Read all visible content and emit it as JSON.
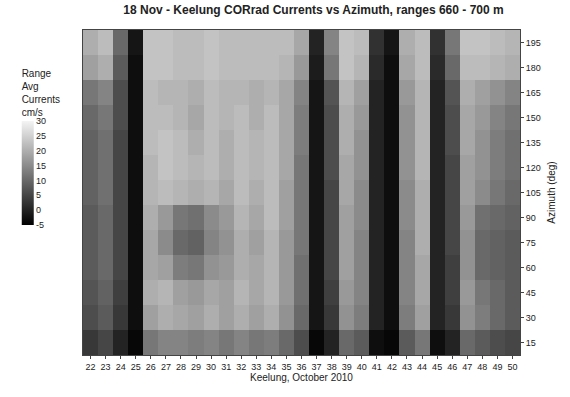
{
  "chart_data": {
    "type": "heatmap",
    "title": "18 Nov - Keelung CORrad Currents vs Azimuth, ranges 660 - 700 m",
    "x_label": "Keelung, October 2010",
    "y_label": "Azimuth (deg)",
    "colorbar_title": [
      "Range",
      "Avg",
      "Currents",
      "cm/s"
    ],
    "x": [
      22,
      23,
      24,
      25,
      26,
      27,
      28,
      29,
      30,
      31,
      32,
      33,
      34,
      35,
      36,
      37,
      38,
      39,
      40,
      41,
      42,
      43,
      44,
      45,
      46,
      47,
      48,
      49,
      50
    ],
    "y": [
      15,
      30,
      45,
      60,
      75,
      90,
      105,
      120,
      135,
      150,
      165,
      180,
      195
    ],
    "z": [
      [
        3,
        5,
        0,
        -4,
        12,
        14,
        14,
        13,
        14,
        12,
        14,
        12,
        13,
        10,
        6,
        -4,
        0,
        10,
        8,
        -3,
        -4,
        8,
        12,
        -3,
        0,
        10,
        8,
        6,
        5
      ],
      [
        6,
        8,
        3,
        -3,
        18,
        20,
        19,
        18,
        20,
        18,
        20,
        18,
        20,
        16,
        10,
        -2,
        3,
        16,
        13,
        0,
        -3,
        13,
        18,
        0,
        3,
        16,
        13,
        10,
        8
      ],
      [
        7,
        9,
        4,
        -3,
        20,
        21,
        18,
        17,
        19,
        18,
        21,
        19,
        21,
        17,
        11,
        -2,
        4,
        17,
        14,
        0,
        -3,
        14,
        19,
        0,
        4,
        17,
        12,
        10,
        8
      ],
      [
        8,
        10,
        5,
        -3,
        19,
        18,
        13,
        12,
        16,
        17,
        20,
        19,
        21,
        17,
        11,
        -2,
        5,
        18,
        14,
        0,
        -3,
        14,
        19,
        0,
        4,
        16,
        10,
        9,
        8
      ],
      [
        8,
        10,
        5,
        -3,
        19,
        15,
        10,
        9,
        14,
        16,
        20,
        18,
        21,
        17,
        12,
        -2,
        5,
        18,
        14,
        0,
        -3,
        14,
        20,
        0,
        5,
        16,
        10,
        9,
        8
      ],
      [
        8,
        10,
        5,
        -3,
        20,
        17,
        12,
        11,
        15,
        17,
        21,
        19,
        22,
        18,
        12,
        -2,
        5,
        18,
        15,
        0,
        -3,
        15,
        20,
        0,
        5,
        17,
        11,
        10,
        9
      ],
      [
        9,
        11,
        5,
        -3,
        21,
        22,
        21,
        20,
        21,
        19,
        22,
        20,
        22,
        18,
        12,
        -2,
        5,
        19,
        15,
        0,
        -3,
        15,
        20,
        0,
        5,
        18,
        15,
        12,
        10
      ],
      [
        9,
        11,
        5,
        -3,
        21,
        23,
        22,
        21,
        22,
        20,
        22,
        21,
        22,
        19,
        12,
        -2,
        6,
        19,
        16,
        0,
        -3,
        16,
        21,
        0,
        5,
        18,
        16,
        13,
        11
      ],
      [
        9,
        11,
        5,
        -3,
        22,
        23,
        22,
        20,
        22,
        20,
        22,
        21,
        22,
        19,
        13,
        -2,
        6,
        20,
        16,
        0,
        -3,
        16,
        21,
        0,
        6,
        19,
        16,
        13,
        11
      ],
      [
        10,
        12,
        6,
        -3,
        22,
        22,
        21,
        19,
        22,
        21,
        22,
        20,
        22,
        19,
        13,
        -2,
        6,
        20,
        17,
        0,
        -3,
        16,
        21,
        0,
        6,
        19,
        17,
        14,
        12
      ],
      [
        12,
        14,
        6,
        -3,
        22,
        21,
        21,
        20,
        22,
        21,
        21,
        20,
        21,
        19,
        14,
        -2,
        7,
        21,
        18,
        0,
        -3,
        17,
        21,
        0,
        7,
        20,
        18,
        16,
        14
      ],
      [
        18,
        20,
        8,
        -3,
        23,
        23,
        22,
        22,
        23,
        22,
        22,
        22,
        22,
        21,
        17,
        -1,
        12,
        23,
        21,
        1,
        -3,
        19,
        22,
        1,
        10,
        22,
        22,
        21,
        20
      ],
      [
        20,
        22,
        10,
        -2,
        23,
        23,
        22,
        22,
        23,
        22,
        22,
        22,
        22,
        22,
        19,
        0,
        14,
        23,
        22,
        2,
        -2,
        20,
        22,
        2,
        12,
        23,
        23,
        22,
        21
      ]
    ],
    "zlim": [
      -5,
      30
    ],
    "zticks": [
      -5,
      0,
      5,
      10,
      15,
      20,
      25,
      30
    ],
    "xlim": [
      21.5,
      50.5
    ],
    "xticks": [
      22,
      23,
      24,
      25,
      26,
      27,
      28,
      29,
      30,
      31,
      32,
      33,
      34,
      35,
      36,
      37,
      38,
      39,
      40,
      41,
      42,
      43,
      44,
      45,
      46,
      47,
      48,
      49,
      50
    ],
    "ylim": [
      7.5,
      202.5
    ],
    "yticks": [
      15,
      30,
      45,
      60,
      75,
      90,
      105,
      120,
      135,
      150,
      165,
      180,
      195
    ]
  }
}
